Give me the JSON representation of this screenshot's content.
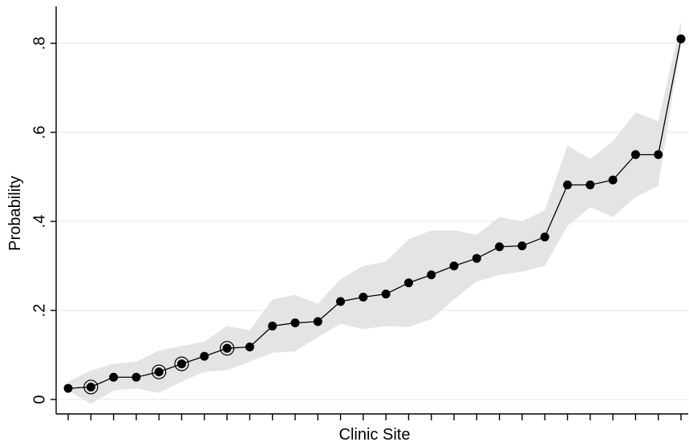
{
  "chart_data": {
    "type": "line",
    "xlabel": "Clinic Site",
    "ylabel": "Probability",
    "ylim": [
      -0.03,
      0.81
    ],
    "grid": true,
    "y_ticks": [
      {
        "value": 0,
        "label": "0"
      },
      {
        "value": 0.2,
        "label": ".2"
      },
      {
        "value": 0.4,
        "label": ".4"
      },
      {
        "value": 0.6,
        "label": ".6"
      },
      {
        "value": 0.8,
        "label": ".8"
      }
    ],
    "x": [
      1,
      2,
      3,
      4,
      5,
      6,
      7,
      8,
      9,
      10,
      11,
      12,
      13,
      14,
      15,
      16,
      17,
      18,
      19,
      20,
      21,
      22,
      23,
      24,
      25,
      26,
      27,
      28
    ],
    "series": [
      {
        "values": [
          0.025,
          0.028,
          0.05,
          0.05,
          0.062,
          0.08,
          0.097,
          0.115,
          0.118,
          0.165,
          0.172,
          0.175,
          0.22,
          0.23,
          0.237,
          0.262,
          0.28,
          0.3,
          0.317,
          0.343,
          0.345,
          0.365,
          0.482,
          0.482,
          0.493,
          0.55,
          0.55,
          0.81
        ],
        "lower": [
          0.02,
          -0.01,
          0.02,
          0.025,
          0.015,
          0.04,
          0.062,
          0.066,
          0.085,
          0.105,
          0.108,
          0.14,
          0.17,
          0.158,
          0.165,
          0.163,
          0.18,
          0.225,
          0.265,
          0.28,
          0.287,
          0.3,
          0.39,
          0.432,
          0.41,
          0.455,
          0.48,
          0.8
        ],
        "upper": [
          0.04,
          0.065,
          0.08,
          0.085,
          0.11,
          0.12,
          0.13,
          0.165,
          0.155,
          0.225,
          0.235,
          0.215,
          0.27,
          0.3,
          0.31,
          0.36,
          0.38,
          0.38,
          0.37,
          0.41,
          0.4,
          0.425,
          0.57,
          0.54,
          0.58,
          0.645,
          0.625,
          0.85
        ],
        "highlighted": [
          false,
          true,
          false,
          false,
          true,
          true,
          false,
          true,
          false,
          false,
          false,
          false,
          false,
          false,
          false,
          false,
          false,
          false,
          false,
          false,
          false,
          false,
          false,
          false,
          false,
          false,
          false,
          false
        ]
      }
    ],
    "colors": {
      "band": "#e4e4e4",
      "line": "#000000",
      "marker": "#000000",
      "grid": "#e6e6e6"
    }
  }
}
